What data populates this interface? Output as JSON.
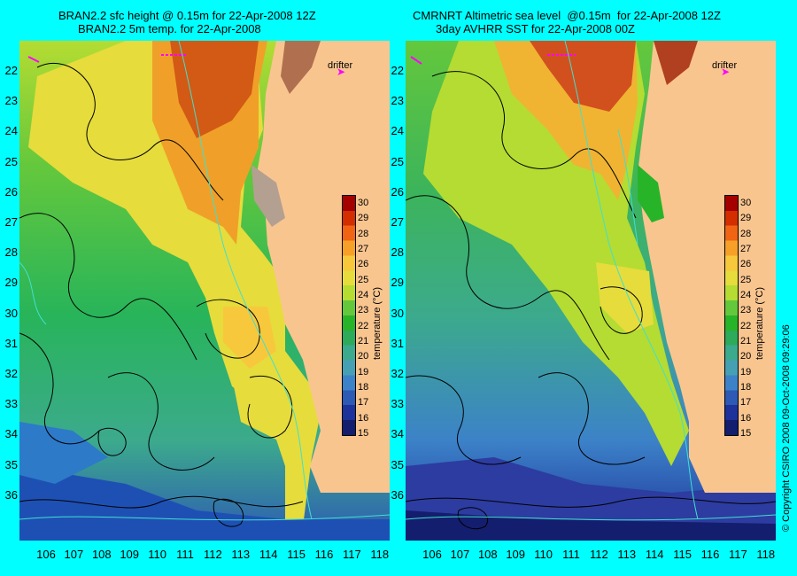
{
  "left": {
    "title_line1": "BRAN2.2 sfc height @ 0.15m for 22-Apr-2008 12Z",
    "title_line2": "BRAN2.2 5m temp. for 22-Apr-2008"
  },
  "right": {
    "title_line1": "CMRNRT Altimetric sea level  @0.15m  for 22-Apr-2008 12Z",
    "title_line2": "3day AVHRR SST for 22-Apr-2008 00Z"
  },
  "drifter_label": "drifter",
  "latitudes": [
    "22",
    "23",
    "24",
    "25",
    "26",
    "27",
    "28",
    "29",
    "30",
    "31",
    "32",
    "33",
    "34",
    "35",
    "36"
  ],
  "longitudes": [
    "106",
    "107",
    "108",
    "109",
    "110",
    "111",
    "112",
    "113",
    "114",
    "115",
    "116",
    "117",
    "118"
  ],
  "colorbar": {
    "title": "temperature (°C)",
    "ticks": [
      "30",
      "29",
      "28",
      "27",
      "26",
      "25",
      "24",
      "23",
      "22",
      "21",
      "20",
      "19",
      "18",
      "17",
      "16",
      "15"
    ],
    "colors": [
      "#a50000",
      "#d42d00",
      "#f06414",
      "#f7a028",
      "#f7c83c",
      "#e6dc3c",
      "#b4dc32",
      "#64c83c",
      "#28b428",
      "#2daa5a",
      "#3caa8c",
      "#46a0b4",
      "#3c82c8",
      "#2d5ab4",
      "#1e329b",
      "#141e6e"
    ]
  },
  "copyright": "© Copyright CSIRO 2008   09-Oct-2008 09:29:06",
  "colors": {
    "background": "#00ffff",
    "land": "#f9c58f",
    "coastline_cyan": "#40e0d0",
    "drifter": "#ff00ff"
  }
}
